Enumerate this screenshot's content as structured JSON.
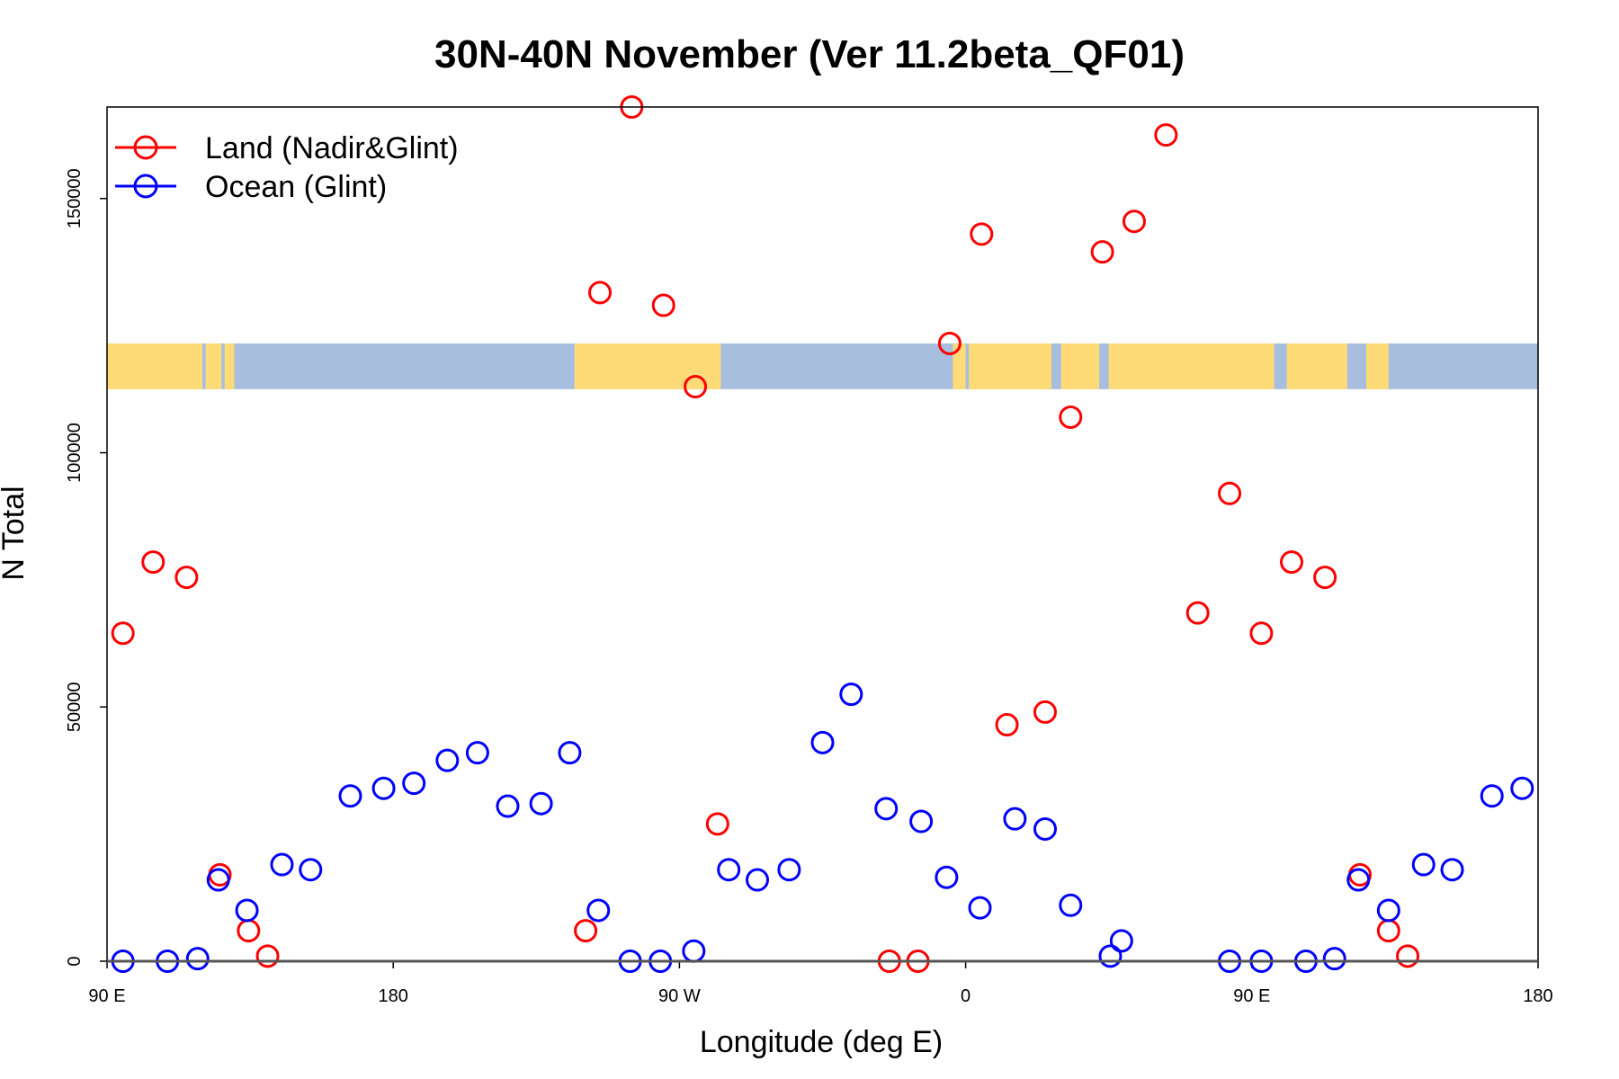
{
  "chart_data": {
    "type": "scatter",
    "title": "30N-40N November (Ver 11.2beta_QF01)",
    "xlabel": "Longitude (deg E)",
    "ylabel": "N Total",
    "xlim": [
      90,
      540
    ],
    "ylim": [
      0,
      168000
    ],
    "x_ticks": [
      {
        "value": 90,
        "label": "90 E"
      },
      {
        "value": 180,
        "label": "180"
      },
      {
        "value": 270,
        "label": "90 W"
      },
      {
        "value": 360,
        "label": "0"
      },
      {
        "value": 450,
        "label": "90 E"
      },
      {
        "value": 540,
        "label": "180"
      }
    ],
    "y_ticks": [
      {
        "value": 0,
        "label": "0"
      },
      {
        "value": 50000,
        "label": "50000"
      },
      {
        "value": 100000,
        "label": "100000"
      },
      {
        "value": 150000,
        "label": "150000"
      }
    ],
    "legend_position": "top-left",
    "series": [
      {
        "name": "Land (Nadir&Glint)",
        "color": "#ff0000",
        "points": [
          {
            "x": 95,
            "y": 64500
          },
          {
            "x": 104.5,
            "y": 78500
          },
          {
            "x": 115,
            "y": 75500
          },
          {
            "x": 125.5,
            "y": 17000
          },
          {
            "x": 134.5,
            "y": 6000
          },
          {
            "x": 140.5,
            "y": 1000
          },
          {
            "x": 240.5,
            "y": 6000
          },
          {
            "x": 245,
            "y": 131500
          },
          {
            "x": 255,
            "y": 168000
          },
          {
            "x": 265,
            "y": 129000
          },
          {
            "x": 275,
            "y": 113000
          },
          {
            "x": 282,
            "y": 27000
          },
          {
            "x": 336,
            "y": 0
          },
          {
            "x": 345,
            "y": 0
          },
          {
            "x": 355,
            "y": 121500
          },
          {
            "x": 365,
            "y": 143000
          },
          {
            "x": 373,
            "y": 46500
          },
          {
            "x": 385,
            "y": 49000
          },
          {
            "x": 393,
            "y": 107000
          },
          {
            "x": 403,
            "y": 139500
          },
          {
            "x": 413,
            "y": 145500
          },
          {
            "x": 423,
            "y": 162500
          },
          {
            "x": 433,
            "y": 68500
          },
          {
            "x": 443,
            "y": 92000
          },
          {
            "x": 453,
            "y": 64500
          },
          {
            "x": 462.5,
            "y": 78500
          },
          {
            "x": 473,
            "y": 75500
          },
          {
            "x": 484,
            "y": 17000
          },
          {
            "x": 493,
            "y": 6000
          },
          {
            "x": 499,
            "y": 1000
          }
        ]
      },
      {
        "name": "Ocean (Glint)",
        "color": "#0000ff",
        "points": [
          {
            "x": 95,
            "y": 0
          },
          {
            "x": 109,
            "y": 0
          },
          {
            "x": 118.5,
            "y": 500
          },
          {
            "x": 125,
            "y": 16000
          },
          {
            "x": 134,
            "y": 10000
          },
          {
            "x": 145,
            "y": 19000
          },
          {
            "x": 154,
            "y": 18000
          },
          {
            "x": 166.5,
            "y": 32500
          },
          {
            "x": 177,
            "y": 34000
          },
          {
            "x": 186.5,
            "y": 35000
          },
          {
            "x": 197,
            "y": 39500
          },
          {
            "x": 206.5,
            "y": 41000
          },
          {
            "x": 216,
            "y": 30500
          },
          {
            "x": 226.5,
            "y": 31000
          },
          {
            "x": 235.5,
            "y": 41000
          },
          {
            "x": 244.5,
            "y": 10000
          },
          {
            "x": 254.5,
            "y": 0
          },
          {
            "x": 264,
            "y": 0
          },
          {
            "x": 274.5,
            "y": 2000
          },
          {
            "x": 285.5,
            "y": 18000
          },
          {
            "x": 294.5,
            "y": 16000
          },
          {
            "x": 304.5,
            "y": 18000
          },
          {
            "x": 315,
            "y": 43000
          },
          {
            "x": 324,
            "y": 52500
          },
          {
            "x": 335,
            "y": 30000
          },
          {
            "x": 346,
            "y": 27500
          },
          {
            "x": 354,
            "y": 16500
          },
          {
            "x": 364.5,
            "y": 10500
          },
          {
            "x": 375.5,
            "y": 28000
          },
          {
            "x": 385,
            "y": 26000
          },
          {
            "x": 393,
            "y": 11000
          },
          {
            "x": 405.5,
            "y": 1000
          },
          {
            "x": 409,
            "y": 4000
          },
          {
            "x": 443,
            "y": 0
          },
          {
            "x": 453,
            "y": 0
          },
          {
            "x": 467,
            "y": 0
          },
          {
            "x": 476,
            "y": 500
          },
          {
            "x": 483.5,
            "y": 16000
          },
          {
            "x": 493,
            "y": 10000
          },
          {
            "x": 504,
            "y": 19000
          },
          {
            "x": 513,
            "y": 18000
          },
          {
            "x": 525.5,
            "y": 32500
          },
          {
            "x": 535,
            "y": 34000
          }
        ]
      }
    ],
    "background_map": {
      "y_range": [
        112500,
        121500
      ],
      "ocean_color": "#a8bedf",
      "land_color": "#ffdb77",
      "land_segments": [
        [
          90,
          120
        ],
        [
          121,
          126
        ],
        [
          127,
          130
        ],
        [
          237,
          283
        ],
        [
          356,
          360
        ],
        [
          361,
          387
        ],
        [
          390,
          402
        ],
        [
          405,
          457
        ],
        [
          461,
          480
        ],
        [
          486,
          493
        ]
      ]
    }
  }
}
